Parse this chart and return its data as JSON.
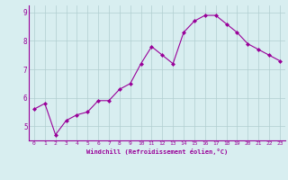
{
  "x": [
    0,
    1,
    2,
    3,
    4,
    5,
    6,
    7,
    8,
    9,
    10,
    11,
    12,
    13,
    14,
    15,
    16,
    17,
    18,
    19,
    20,
    21,
    22,
    23
  ],
  "y": [
    5.6,
    5.8,
    4.7,
    5.2,
    5.4,
    5.5,
    5.9,
    5.9,
    6.3,
    6.5,
    7.2,
    7.8,
    7.5,
    7.2,
    8.3,
    8.7,
    8.9,
    8.9,
    8.6,
    8.3,
    7.9,
    7.7,
    7.5,
    7.3
  ],
  "line_color": "#990099",
  "marker": "D",
  "marker_size": 2,
  "background_color": "#d8eef0",
  "grid_color": "#b0cdd0",
  "xlabel": "Windchill (Refroidissement éolien,°C)",
  "xlabel_color": "#990099",
  "tick_color": "#990099",
  "axis_color": "#990099",
  "ylim": [
    4.5,
    9.25
  ],
  "xlim": [
    -0.5,
    23.5
  ],
  "yticks": [
    5,
    6,
    7,
    8,
    9
  ],
  "xticks": [
    0,
    1,
    2,
    3,
    4,
    5,
    6,
    7,
    8,
    9,
    10,
    11,
    12,
    13,
    14,
    15,
    16,
    17,
    18,
    19,
    20,
    21,
    22,
    23
  ],
  "tick_fontsize": 4.5,
  "xlabel_fontsize": 5.0,
  "ytick_fontsize": 5.5
}
